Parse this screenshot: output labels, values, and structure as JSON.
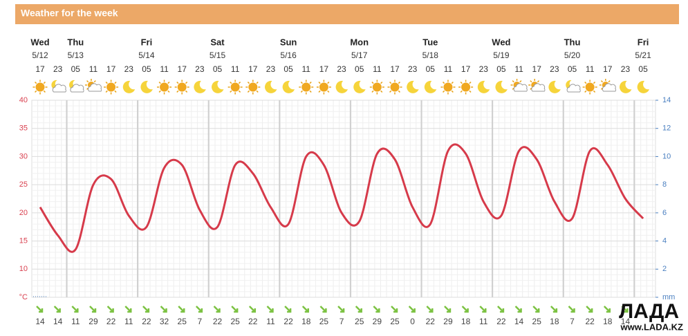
{
  "header": {
    "title": "Weather for the week"
  },
  "chart_data": {
    "type": "line",
    "days": [
      {
        "name": "Wed",
        "date": "5/12"
      },
      {
        "name": "Thu",
        "date": "5/13"
      },
      {
        "name": "Fri",
        "date": "5/14"
      },
      {
        "name": "Sat",
        "date": "5/15"
      },
      {
        "name": "Sun",
        "date": "5/16"
      },
      {
        "name": "Mon",
        "date": "5/17"
      },
      {
        "name": "Tue",
        "date": "5/18"
      },
      {
        "name": "Wed",
        "date": "5/19"
      },
      {
        "name": "Thu",
        "date": "5/20"
      },
      {
        "name": "Fri",
        "date": "5/21"
      }
    ],
    "categories": [
      "17",
      "23",
      "05",
      "11",
      "17",
      "23",
      "05",
      "11",
      "17",
      "23",
      "05",
      "11",
      "17",
      "23",
      "05",
      "11",
      "17",
      "23",
      "05",
      "11",
      "17",
      "23",
      "05",
      "11",
      "17",
      "23",
      "05",
      "11",
      "17",
      "23",
      "05",
      "11",
      "17",
      "23",
      "05"
    ],
    "icons": [
      "sun",
      "moon-cloud",
      "moon-cloud",
      "sun-cloud",
      "sun",
      "moon",
      "moon",
      "sun",
      "sun",
      "moon",
      "moon",
      "sun",
      "sun",
      "moon",
      "moon",
      "sun",
      "sun",
      "moon",
      "moon",
      "sun",
      "sun",
      "moon",
      "moon",
      "sun",
      "sun",
      "moon",
      "moon",
      "sun-cloud",
      "sun-cloud",
      "moon",
      "moon-cloud",
      "sun",
      "sun-cloud",
      "moon",
      "moon"
    ],
    "values": [
      21,
      16,
      13.5,
      25,
      26,
      19.5,
      17.5,
      28,
      28.5,
      20.5,
      17.5,
      28.5,
      27,
      21,
      18,
      30,
      28.5,
      20,
      18.5,
      30.5,
      29.5,
      21,
      18,
      31,
      30.5,
      22,
      19.5,
      31,
      29.5,
      22,
      19,
      31,
      28.5,
      22.5,
      19
    ],
    "color": "#d63a4a",
    "ylim": [
      5,
      40
    ],
    "yticks": [
      {
        "value": 5,
        "label": "°C"
      },
      10,
      15,
      20,
      25,
      30,
      35,
      40
    ],
    "y2lim": [
      0,
      14
    ],
    "y2ticks": [
      {
        "value": 0,
        "label": "mm"
      },
      2,
      4,
      6,
      8,
      10,
      12,
      14
    ],
    "wind": [
      14,
      14,
      11,
      29,
      22,
      11,
      22,
      32,
      25,
      7,
      22,
      25,
      22,
      11,
      22,
      18,
      25,
      7,
      25,
      29,
      25,
      0,
      22,
      29,
      18,
      11,
      22,
      14,
      25,
      18,
      7,
      22,
      18,
      14,
      null
    ],
    "grid": true
  },
  "watermark": {
    "title": "ЛАДА",
    "url": "www.LADA.KZ"
  }
}
